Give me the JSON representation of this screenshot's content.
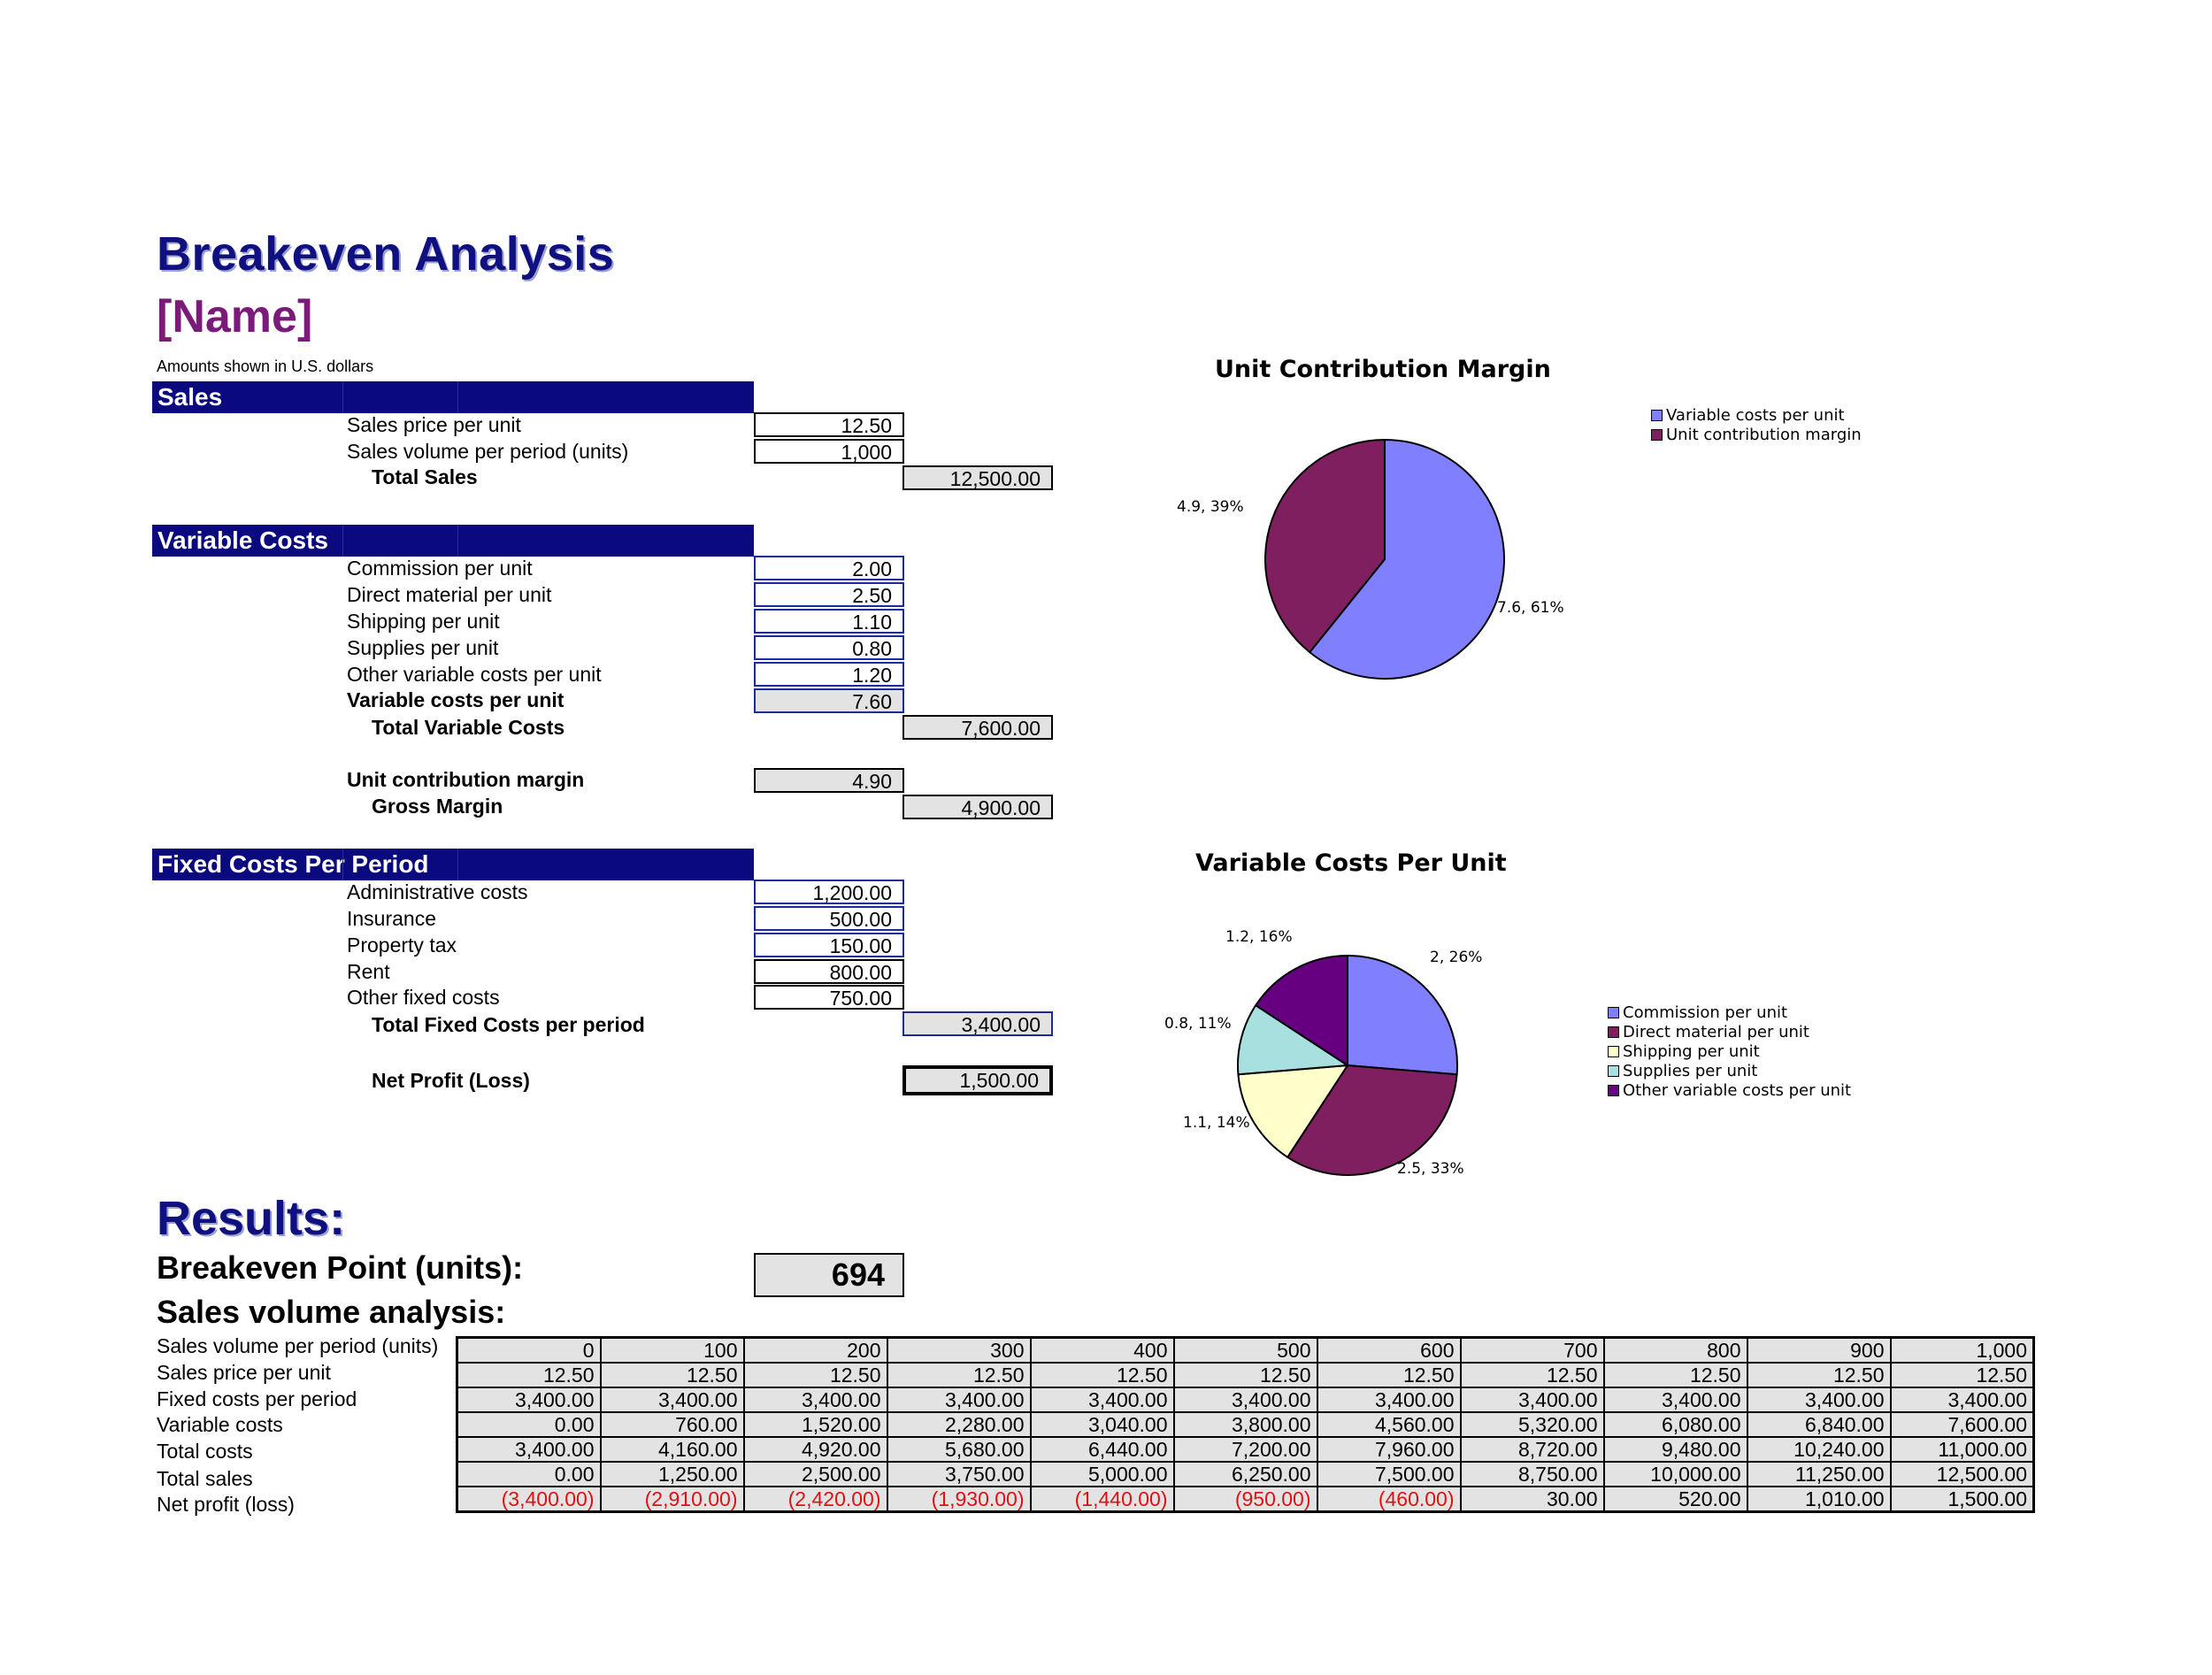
{
  "header": {
    "title": "Breakeven Analysis",
    "name": "[Name]",
    "note": "Amounts shown in U.S. dollars"
  },
  "sales": {
    "heading": "Sales",
    "price_label": "Sales price per unit",
    "price": "12.50",
    "volume_label": "Sales volume per period (units)",
    "volume": "1,000",
    "total_label": "Total Sales",
    "total": "12,500.00"
  },
  "variable": {
    "heading": "Variable Costs",
    "items": [
      {
        "label": "Commission per unit",
        "value": "2.00"
      },
      {
        "label": "Direct material per unit",
        "value": "2.50"
      },
      {
        "label": "Shipping per unit",
        "value": "1.10"
      },
      {
        "label": "Supplies per unit",
        "value": "0.80"
      },
      {
        "label": "Other variable costs per unit",
        "value": "1.20"
      }
    ],
    "per_unit_label": "Variable costs per unit",
    "per_unit": "7.60",
    "total_label": "Total Variable Costs",
    "total": "7,600.00",
    "ucm_label": "Unit contribution margin",
    "ucm": "4.90",
    "gm_label": "Gross Margin",
    "gm": "4,900.00"
  },
  "fixed": {
    "heading": "Fixed Costs Per Period",
    "items": [
      {
        "label": "Administrative costs",
        "value": "1,200.00"
      },
      {
        "label": "Insurance",
        "value": "500.00"
      },
      {
        "label": "Property tax",
        "value": "150.00"
      },
      {
        "label": "Rent",
        "value": "800.00"
      },
      {
        "label": "Other fixed costs",
        "value": "750.00"
      }
    ],
    "total_label": "Total Fixed Costs per period",
    "total": "3,400.00",
    "net_label": "Net Profit (Loss)",
    "net": "1,500.00"
  },
  "results": {
    "heading": "Results:",
    "be_label": "Breakeven Point (units):",
    "be_value": "694",
    "sva_label": "Sales volume analysis:",
    "row_labels": [
      "Sales volume per period (units)",
      "Sales price per unit",
      "Fixed costs per period",
      "Variable costs",
      "Total costs",
      "Total sales",
      "Net profit (loss)"
    ],
    "rows": [
      [
        "0",
        "100",
        "200",
        "300",
        "400",
        "500",
        "600",
        "700",
        "800",
        "900",
        "1,000"
      ],
      [
        "12.50",
        "12.50",
        "12.50",
        "12.50",
        "12.50",
        "12.50",
        "12.50",
        "12.50",
        "12.50",
        "12.50",
        "12.50"
      ],
      [
        "3,400.00",
        "3,400.00",
        "3,400.00",
        "3,400.00",
        "3,400.00",
        "3,400.00",
        "3,400.00",
        "3,400.00",
        "3,400.00",
        "3,400.00",
        "3,400.00"
      ],
      [
        "0.00",
        "760.00",
        "1,520.00",
        "2,280.00",
        "3,040.00",
        "3,800.00",
        "4,560.00",
        "5,320.00",
        "6,080.00",
        "6,840.00",
        "7,600.00"
      ],
      [
        "3,400.00",
        "4,160.00",
        "4,920.00",
        "5,680.00",
        "6,440.00",
        "7,200.00",
        "7,960.00",
        "8,720.00",
        "9,480.00",
        "10,240.00",
        "11,000.00"
      ],
      [
        "0.00",
        "1,250.00",
        "2,500.00",
        "3,750.00",
        "5,000.00",
        "6,250.00",
        "7,500.00",
        "8,750.00",
        "10,000.00",
        "11,250.00",
        "12,500.00"
      ],
      [
        "(3,400.00)",
        "(2,910.00)",
        "(2,420.00)",
        "(1,930.00)",
        "(1,440.00)",
        "(950.00)",
        "(460.00)",
        "30.00",
        "520.00",
        "1,010.00",
        "1,500.00"
      ]
    ]
  },
  "colors": {
    "band": "#0a0a7e",
    "title": "#101080",
    "name": "#7a1b7a",
    "negative": "#e01010",
    "slice1": "#8080ff",
    "slice2": "#7f1f5f",
    "slice3": "#ffffcc",
    "slice4": "#a8e0e0",
    "slice5": "#660080"
  },
  "chart_data": [
    {
      "type": "pie",
      "title": "Unit Contribution Margin",
      "series": [
        {
          "values": [
            7.6,
            4.9
          ]
        }
      ],
      "categories": [
        "Variable costs per unit",
        "Unit contribution margin"
      ],
      "data_labels": [
        "7.6, 61%",
        "4.9, 39%"
      ],
      "colors": [
        "#8080ff",
        "#7f1f5f"
      ],
      "legend": "right"
    },
    {
      "type": "pie",
      "title": "Variable Costs Per Unit",
      "series": [
        {
          "values": [
            2,
            2.5,
            1.1,
            0.8,
            1.2
          ]
        }
      ],
      "categories": [
        "Commission per unit",
        "Direct material per unit",
        "Shipping per unit",
        "Supplies per unit",
        "Other variable costs per unit"
      ],
      "data_labels": [
        "2, 26%",
        "2.5, 33%",
        "1.1, 14%",
        "0.8, 11%",
        "1.2, 16%"
      ],
      "colors": [
        "#8080ff",
        "#7f1f5f",
        "#ffffcc",
        "#a8e0e0",
        "#660080"
      ],
      "legend": "right"
    }
  ]
}
